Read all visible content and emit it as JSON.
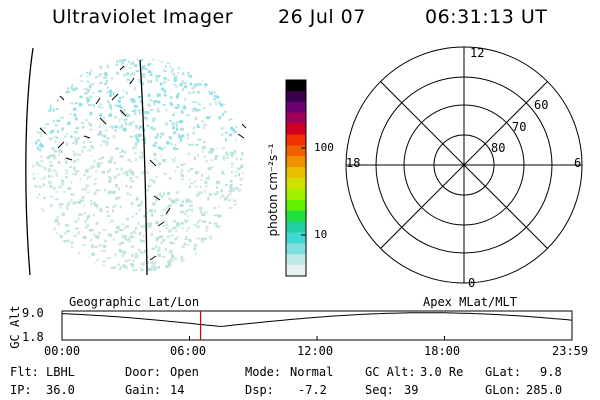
{
  "header": {
    "instrument": "Ultraviolet Imager",
    "date": "26 Jul 07",
    "time": "06:31:13 UT"
  },
  "colorbar": {
    "unit_label": "photon cm⁻²s⁻¹",
    "ticks": [
      "100",
      "10"
    ],
    "tick_values": [
      100,
      10
    ],
    "colors": [
      "#000000",
      "#3a004a",
      "#6a0070",
      "#a0005a",
      "#d00020",
      "#f03000",
      "#f06000",
      "#f09000",
      "#e8c000",
      "#d0e000",
      "#a0f000",
      "#60f000",
      "#20e040",
      "#20d0a0",
      "#40d8d0",
      "#80e0e0",
      "#c0eaea",
      "#e8f0f0"
    ]
  },
  "polar_plot": {
    "clock_labels": [
      "12",
      "18",
      "6",
      "0"
    ],
    "latitude_labels": [
      "60",
      "70",
      "80"
    ]
  },
  "strip_chart": {
    "left_title": "Geographic Lat/Lon",
    "right_title": "Apex MLat/MLT",
    "ylabel": "GC Alt",
    "ytick_top": "9.0",
    "ytick_bottom": "1.8",
    "ylim": [
      1.8,
      9.0
    ],
    "xtick_labels": [
      "00:00",
      "06:00",
      "12:00",
      "18:00",
      "23:59"
    ],
    "current_time_hours": 6.52
  },
  "status": {
    "flt_label": "Flt:",
    "flt_value": "LBHL",
    "ip_label": "IP:",
    "ip_value": "36.0",
    "door_label": "Door:",
    "door_value": "Open",
    "gain_label": "Gain:",
    "gain_value": "14",
    "mode_label": "Mode:",
    "mode_value": "Normal",
    "dsp_label": "Dsp:",
    "dsp_value": "-7.2",
    "gcalt_label": "GC Alt:",
    "gcalt_value": "3.0 Re",
    "seq_label": "Seq:",
    "seq_value": "39",
    "glat_label": "GLat:",
    "glat_value": "9.8",
    "glon_label": "GLon:",
    "glon_value": "285.0"
  }
}
